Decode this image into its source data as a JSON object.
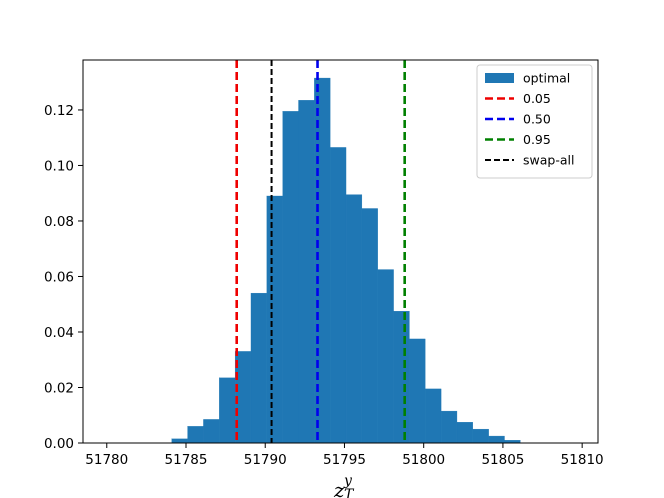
{
  "chart_data": {
    "type": "bar",
    "title": "",
    "xlabel_base": "z",
    "xlabel_sup": "y",
    "xlabel_sub": "T",
    "ylabel": "",
    "xlim": [
      51778.5,
      51811
    ],
    "ylim": [
      0,
      0.138
    ],
    "xticks": [
      51780,
      51785,
      51790,
      51795,
      51800,
      51805,
      51810
    ],
    "yticks": [
      0.0,
      0.02,
      0.04,
      0.06,
      0.08,
      0.1,
      0.12
    ],
    "ytick_labels": [
      "0.00",
      "0.02",
      "0.04",
      "0.06",
      "0.08",
      "0.10",
      "0.12"
    ],
    "histogram": {
      "name": "optimal",
      "color": "#1f77b4",
      "bin_start": 51784.1,
      "bin_width": 1.0,
      "values": [
        0.0015,
        0.006,
        0.0085,
        0.0235,
        0.033,
        0.054,
        0.089,
        0.1195,
        0.1235,
        0.1315,
        0.1065,
        0.0895,
        0.0845,
        0.0625,
        0.0475,
        0.0375,
        0.0195,
        0.0115,
        0.0075,
        0.005,
        0.0025,
        0.001
      ]
    },
    "vlines": [
      {
        "name": "0.05",
        "x": 51788.2,
        "color": "#ee0000",
        "style": "dashed"
      },
      {
        "name": "0.50",
        "x": 51793.3,
        "color": "#0000ee",
        "style": "dashed"
      },
      {
        "name": "0.95",
        "x": 51798.8,
        "color": "#008000",
        "style": "dashed"
      },
      {
        "name": "swap-all",
        "x": 51790.4,
        "color": "#000000",
        "style": "dashed"
      }
    ],
    "legend": {
      "placement": "top-right",
      "entries": [
        {
          "label": "optimal",
          "kind": "patch",
          "color": "#1f77b4"
        },
        {
          "label": "0.05",
          "kind": "line",
          "color": "#ee0000"
        },
        {
          "label": "0.50",
          "kind": "line",
          "color": "#0000ee"
        },
        {
          "label": "0.95",
          "kind": "line",
          "color": "#008000"
        },
        {
          "label": "swap-all",
          "kind": "line",
          "color": "#000000"
        }
      ]
    },
    "grid": false
  }
}
